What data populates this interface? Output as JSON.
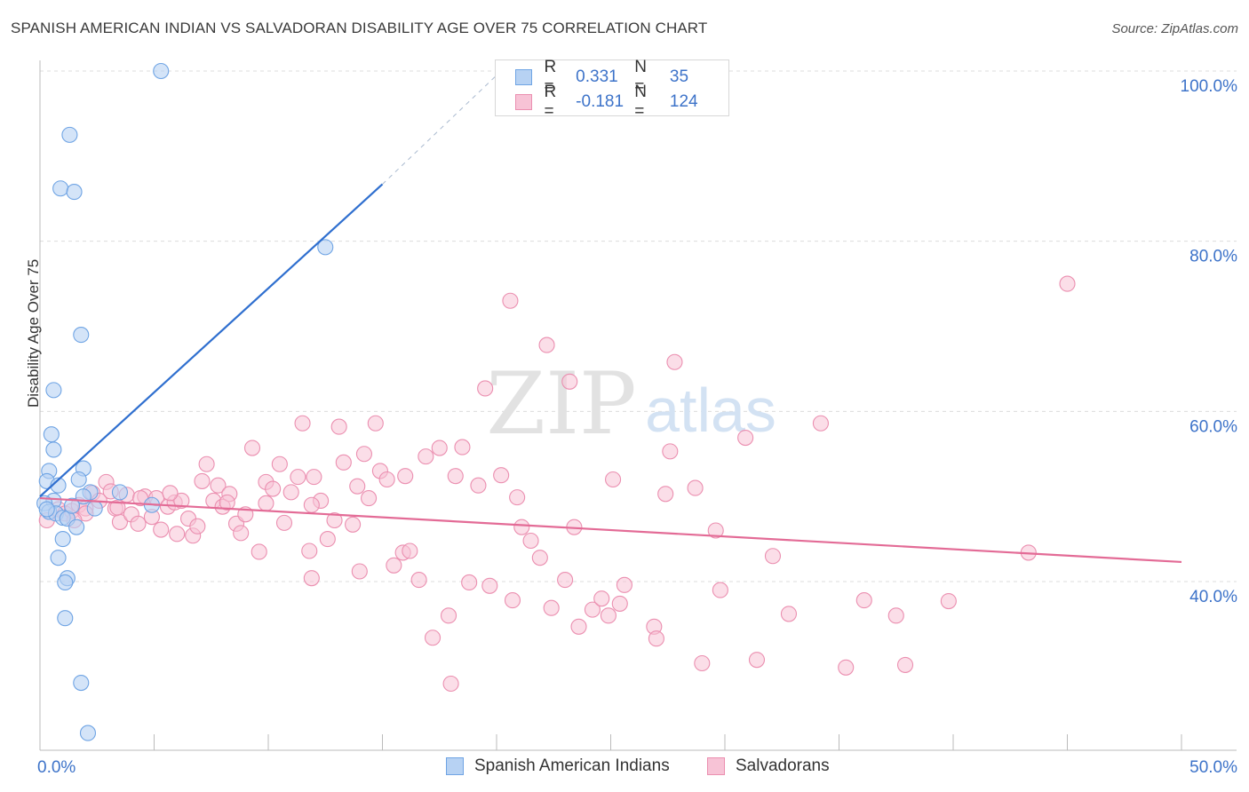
{
  "title": "SPANISH AMERICAN INDIAN VS SALVADORAN DISABILITY AGE OVER 75 CORRELATION CHART",
  "source": "Source: ZipAtlas.com",
  "watermark": {
    "zip": "ZIP",
    "atlas": "atlas"
  },
  "legend": {
    "series1": {
      "r_label": "R =",
      "r_value": "0.331",
      "n_label": "N =",
      "n_value": "35"
    },
    "series2": {
      "r_label": "R =",
      "r_value": "-0.181",
      "n_label": "N =",
      "n_value": "124"
    }
  },
  "bottom_legend": {
    "series1": "Spanish American Indians",
    "series2": "Salvadorans"
  },
  "colors": {
    "blue": "#6fa4e4",
    "blue_fill": "#b7d2f3",
    "blue_line": "#2f6fcf",
    "pink": "#eb8fb0",
    "pink_fill": "#f7c3d6",
    "pink_line": "#e36b96",
    "grid": "#dcdcdc",
    "tick_label": "#3d73c9"
  },
  "chart_data": {
    "type": "scatter",
    "title": "SPANISH AMERICAN INDIAN VS SALVADORAN DISABILITY AGE OVER 75 CORRELATION CHART",
    "ylabel": "Disability Age Over 75",
    "xlabel": "",
    "xlim": [
      0,
      50
    ],
    "ylim": [
      20,
      104
    ],
    "x_tick_labels": [
      {
        "value": 0,
        "label": "0.0%"
      },
      {
        "value": 50,
        "label": "50.0%"
      }
    ],
    "y_tick_labels": [
      {
        "value": 40,
        "label": "40.0%"
      },
      {
        "value": 60,
        "label": "60.0%"
      },
      {
        "value": 80,
        "label": "80.0%"
      },
      {
        "value": 100,
        "label": "100.0%"
      }
    ],
    "grid": true,
    "legend_position": "top-center",
    "series": [
      {
        "name": "Spanish American Indians",
        "r": 0.331,
        "n": 35,
        "trend": {
          "x0": 0.0,
          "y0": 50.0,
          "x1": 15.0,
          "y1": 86.7,
          "dashed_to_x": 20.0,
          "dashed_to_y": 99.5
        },
        "points": [
          [
            5.3,
            100.0
          ],
          [
            1.3,
            92.5
          ],
          [
            0.9,
            86.2
          ],
          [
            1.5,
            85.8
          ],
          [
            12.5,
            79.3
          ],
          [
            1.8,
            69.0
          ],
          [
            0.6,
            62.5
          ],
          [
            0.5,
            57.3
          ],
          [
            0.6,
            55.5
          ],
          [
            0.4,
            53.0
          ],
          [
            1.9,
            53.3
          ],
          [
            1.7,
            52.0
          ],
          [
            0.3,
            51.8
          ],
          [
            0.8,
            51.3
          ],
          [
            2.2,
            50.5
          ],
          [
            3.5,
            50.5
          ],
          [
            1.9,
            50.0
          ],
          [
            0.6,
            49.5
          ],
          [
            0.2,
            49.2
          ],
          [
            2.4,
            48.6
          ],
          [
            4.9,
            49.0
          ],
          [
            0.4,
            48.2
          ],
          [
            0.7,
            48.0
          ],
          [
            1.0,
            47.5
          ],
          [
            1.2,
            47.4
          ],
          [
            1.6,
            46.4
          ],
          [
            1.0,
            45.0
          ],
          [
            0.8,
            42.8
          ],
          [
            1.2,
            40.4
          ],
          [
            1.1,
            39.9
          ],
          [
            1.1,
            35.7
          ],
          [
            1.8,
            28.1
          ],
          [
            2.1,
            22.2
          ],
          [
            0.3,
            48.5
          ],
          [
            1.4,
            48.9
          ]
        ]
      },
      {
        "name": "Salvadorans",
        "r": -0.181,
        "n": 124,
        "trend": {
          "x0": 0.0,
          "y0": 49.8,
          "x1": 50.0,
          "y1": 42.3
        },
        "points": [
          [
            0.3,
            47.2
          ],
          [
            0.8,
            48.5
          ],
          [
            1.1,
            48.0
          ],
          [
            1.4,
            48.3
          ],
          [
            1.7,
            49.0
          ],
          [
            2.0,
            48.6
          ],
          [
            2.3,
            50.4
          ],
          [
            2.6,
            49.5
          ],
          [
            2.9,
            51.7
          ],
          [
            3.1,
            50.6
          ],
          [
            3.3,
            48.6
          ],
          [
            3.5,
            47.0
          ],
          [
            3.8,
            50.2
          ],
          [
            4.0,
            47.9
          ],
          [
            4.3,
            46.8
          ],
          [
            4.6,
            50.0
          ],
          [
            4.9,
            47.6
          ],
          [
            5.1,
            49.8
          ],
          [
            5.3,
            46.1
          ],
          [
            5.6,
            48.8
          ],
          [
            5.9,
            49.3
          ],
          [
            6.2,
            49.5
          ],
          [
            6.5,
            47.4
          ],
          [
            6.7,
            45.4
          ],
          [
            6.9,
            46.5
          ],
          [
            7.1,
            51.8
          ],
          [
            7.3,
            53.8
          ],
          [
            7.6,
            49.5
          ],
          [
            7.8,
            51.3
          ],
          [
            8.0,
            48.8
          ],
          [
            8.3,
            50.3
          ],
          [
            8.6,
            46.8
          ],
          [
            8.8,
            45.7
          ],
          [
            9.0,
            47.9
          ],
          [
            9.3,
            55.7
          ],
          [
            9.6,
            43.5
          ],
          [
            9.9,
            51.7
          ],
          [
            10.2,
            50.9
          ],
          [
            10.5,
            53.8
          ],
          [
            10.7,
            46.9
          ],
          [
            11.0,
            50.5
          ],
          [
            11.3,
            52.3
          ],
          [
            11.5,
            58.6
          ],
          [
            11.8,
            43.6
          ],
          [
            11.9,
            40.4
          ],
          [
            12.3,
            49.5
          ],
          [
            12.6,
            45.0
          ],
          [
            12.9,
            47.2
          ],
          [
            13.1,
            58.2
          ],
          [
            13.3,
            54.0
          ],
          [
            13.7,
            46.7
          ],
          [
            13.9,
            51.2
          ],
          [
            14.2,
            55.0
          ],
          [
            14.4,
            49.8
          ],
          [
            14.7,
            58.6
          ],
          [
            14.9,
            53.0
          ],
          [
            15.2,
            52.0
          ],
          [
            15.5,
            41.9
          ],
          [
            15.9,
            43.4
          ],
          [
            16.2,
            43.6
          ],
          [
            16.6,
            40.2
          ],
          [
            16.9,
            54.7
          ],
          [
            17.2,
            33.4
          ],
          [
            17.5,
            55.7
          ],
          [
            17.9,
            36.0
          ],
          [
            18.2,
            52.4
          ],
          [
            18.5,
            55.8
          ],
          [
            18.8,
            39.9
          ],
          [
            19.2,
            51.3
          ],
          [
            19.5,
            62.7
          ],
          [
            19.7,
            39.5
          ],
          [
            20.2,
            52.5
          ],
          [
            20.7,
            37.8
          ],
          [
            20.9,
            49.9
          ],
          [
            21.1,
            46.4
          ],
          [
            21.5,
            44.8
          ],
          [
            21.9,
            42.8
          ],
          [
            22.2,
            67.8
          ],
          [
            22.4,
            36.9
          ],
          [
            23.0,
            40.2
          ],
          [
            23.2,
            63.5
          ],
          [
            23.4,
            46.4
          ],
          [
            23.6,
            34.7
          ],
          [
            24.2,
            36.7
          ],
          [
            24.6,
            38.0
          ],
          [
            25.1,
            52.0
          ],
          [
            25.4,
            37.4
          ],
          [
            25.6,
            39.6
          ],
          [
            26.9,
            34.7
          ],
          [
            27.0,
            33.3
          ],
          [
            27.4,
            50.3
          ],
          [
            27.6,
            55.3
          ],
          [
            27.8,
            65.8
          ],
          [
            28.7,
            51.0
          ],
          [
            29.0,
            30.4
          ],
          [
            29.6,
            46.0
          ],
          [
            29.8,
            39.0
          ],
          [
            30.9,
            56.9
          ],
          [
            31.4,
            30.8
          ],
          [
            32.1,
            43.0
          ],
          [
            32.8,
            36.2
          ],
          [
            34.2,
            58.6
          ],
          [
            35.3,
            29.9
          ],
          [
            36.1,
            37.8
          ],
          [
            37.5,
            36.0
          ],
          [
            37.9,
            30.2
          ],
          [
            16.0,
            52.4
          ],
          [
            20.6,
            73.0
          ],
          [
            45.0,
            75.0
          ],
          [
            11.9,
            49.0
          ],
          [
            39.8,
            37.7
          ],
          [
            43.3,
            43.4
          ],
          [
            9.9,
            49.2
          ],
          [
            14.0,
            41.2
          ],
          [
            6.0,
            45.6
          ],
          [
            2.0,
            48.0
          ],
          [
            1.5,
            47.2
          ],
          [
            4.4,
            49.8
          ],
          [
            5.7,
            50.4
          ],
          [
            12.0,
            52.3
          ],
          [
            8.2,
            49.3
          ],
          [
            3.4,
            48.7
          ],
          [
            18.0,
            28.0
          ],
          [
            24.9,
            36.0
          ]
        ]
      }
    ]
  }
}
